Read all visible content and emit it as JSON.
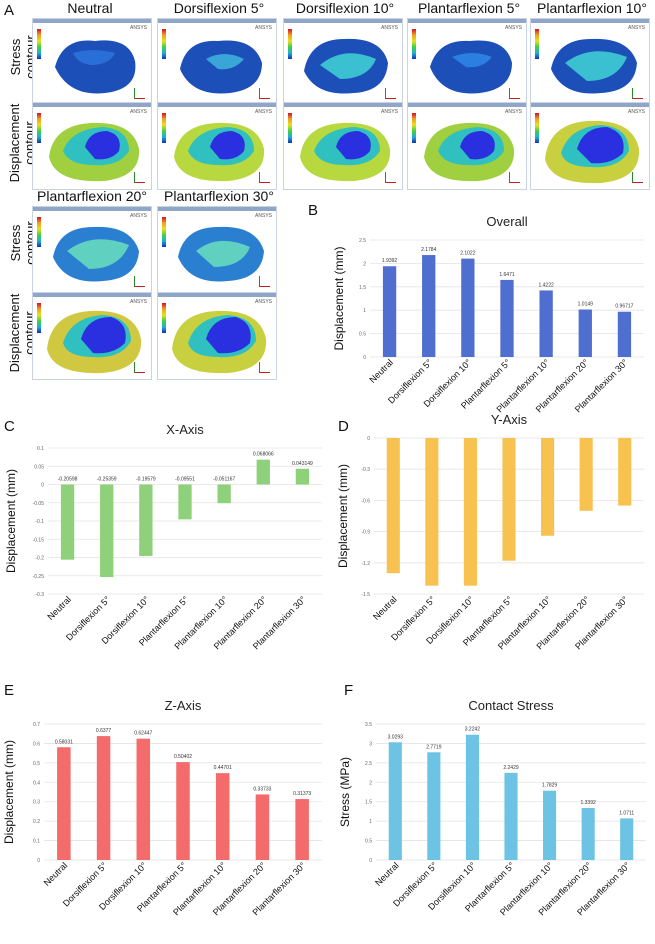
{
  "panel_letters": {
    "a": "A",
    "b": "B",
    "c": "C",
    "d": "D",
    "e": "E",
    "f": "F"
  },
  "figure_a": {
    "column_titles": [
      "Neutral",
      "Dorsiflexion 5°",
      "Dorsiflexion 10°",
      "Plantarflexion 5°",
      "Plantarflexion 10°"
    ],
    "column_titles_lower": [
      "Plantarflexion 20°",
      "Plantarflexion 30°"
    ],
    "row_labels": {
      "stress_line1": "Stress",
      "stress_line2": "contour",
      "disp_line1": "Displacement",
      "disp_line2": "contour"
    },
    "watermark": "ANSYS"
  },
  "colors": {
    "overall": "#4f6fd0",
    "x_axis": "#8fd07a",
    "y_axis": "#f7c24f",
    "z_axis": "#f36b6b",
    "contact": "#6cc3e3",
    "grid": "#e3e3e3",
    "mesh_stress_base": "#1c4fb8",
    "mesh_disp_base": "#2a2fe0"
  },
  "chart_data": [
    {
      "id": "overall",
      "type": "bar",
      "title": "Overall",
      "ylabel": "Displacement (mm)",
      "categories": [
        "Neutral",
        "Dorsiflexion 5°",
        "Dorsiflexion 10°",
        "Plantarflexion 5°",
        "Plantarflexion 10°",
        "Plantarflexion 20°",
        "Plantarflexion 30°"
      ],
      "values": [
        1.9392,
        2.1784,
        2.1022,
        1.6471,
        1.4222,
        1.0149,
        0.96717
      ],
      "value_labels": [
        "1.9392",
        "2.1784",
        "2.1022",
        "1.6471",
        "1.4222",
        "1.0149",
        "0.96717"
      ],
      "ylim": [
        0,
        2.5
      ],
      "yticks": [
        0,
        0.5,
        1,
        1.5,
        2,
        2.5
      ],
      "ytick_labels": [
        "0",
        "0.5",
        "1",
        "1.5",
        "2",
        "2.5"
      ]
    },
    {
      "id": "x_axis",
      "type": "bar",
      "title": "X-Axis",
      "ylabel": "Displacement (mm)",
      "categories": [
        "Neutral",
        "Dorsiflexion 5°",
        "Dorsiflexion 10°",
        "Plantarflexion 5°",
        "Plantarflexion 10°",
        "Plantarflexion 20°",
        "Plantarflexion 30°"
      ],
      "values": [
        -0.20598,
        -0.25359,
        -0.19579,
        -0.09551,
        -0.051167,
        0.068066,
        0.043149
      ],
      "value_labels": [
        "-0.20598",
        "-0.25359",
        "-0.19579",
        "-0.09551",
        "-0.051167",
        "0.068066",
        "0.043149"
      ],
      "ylim": [
        -0.3,
        0.1
      ],
      "yticks": [
        -0.3,
        -0.25,
        -0.2,
        -0.15,
        -0.1,
        -0.05,
        0,
        0.05,
        0.1
      ],
      "ytick_labels": [
        "-0.3",
        "-0.25",
        "-0.2",
        "-0.15",
        "-0.1",
        "-0.05",
        "0",
        "0.05",
        "0.1"
      ]
    },
    {
      "id": "y_axis",
      "type": "bar",
      "title": "Y-Axis",
      "ylabel": "Displacement (mm)",
      "categories": [
        "Neutral",
        "Dorsiflexion 5°",
        "Dorsiflexion 10°",
        "Plantarflexion 5°",
        "Plantarflexion 10°",
        "Plantarflexion 20°",
        "Plantarflexion 30°"
      ],
      "values": [
        -1.3,
        -1.42,
        -1.42,
        -1.18,
        -0.94,
        -0.7,
        -0.65
      ],
      "value_labels": [],
      "ylim": [
        -1.5,
        0
      ],
      "yticks": [
        -1.5,
        -1.2,
        -0.9,
        -0.6,
        -0.3,
        0
      ],
      "ytick_labels": [
        "-1.5",
        "-1.2",
        "-0.9",
        "-0.6",
        "-0.3",
        "0"
      ]
    },
    {
      "id": "z_axis",
      "type": "bar",
      "title": "Z-Axis",
      "ylabel": "Displacement (mm)",
      "categories": [
        "Neutral",
        "Dorsiflexion 5°",
        "Dorsiflexion 10°",
        "Plantarflexion 5°",
        "Plantarflexion 10°",
        "Plantarflexion 20°",
        "Plantarflexion 30°"
      ],
      "values": [
        0.58031,
        0.6377,
        0.62447,
        0.50402,
        0.44701,
        0.33733,
        0.31373
      ],
      "value_labels": [
        "0.58031",
        "0.6377",
        "0.62447",
        "0.50402",
        "0.44701",
        "0.33733",
        "0.31373"
      ],
      "ylim": [
        0,
        0.7
      ],
      "yticks": [
        0,
        0.1,
        0.2,
        0.3,
        0.4,
        0.5,
        0.6,
        0.7
      ],
      "ytick_labels": [
        "0",
        "0.1",
        "0.2",
        "0.3",
        "0.4",
        "0.5",
        "0.6",
        "0.7"
      ]
    },
    {
      "id": "contact",
      "type": "bar",
      "title": "Contact Stress",
      "ylabel": "Stress (MPa)",
      "categories": [
        "Neutral",
        "Dorsiflexion 5°",
        "Dorsiflexion 10°",
        "Plantarflexion 5°",
        "Plantarflexion 10°",
        "Plantarflexion 20°",
        "Plantarflexion 30°"
      ],
      "values": [
        3.0293,
        2.7719,
        3.2242,
        2.2429,
        1.7829,
        1.3392,
        1.0711
      ],
      "value_labels": [
        "3.0293",
        "2.7719",
        "3.2242",
        "2.2429",
        "1.7829",
        "1.3392",
        "1.0711"
      ],
      "ylim": [
        0,
        3.5
      ],
      "yticks": [
        0,
        0.5,
        1,
        1.5,
        2,
        2.5,
        3,
        3.5
      ],
      "ytick_labels": [
        "0",
        "0.5",
        "1",
        "1.5",
        "2",
        "2.5",
        "3",
        "3.5"
      ]
    }
  ]
}
